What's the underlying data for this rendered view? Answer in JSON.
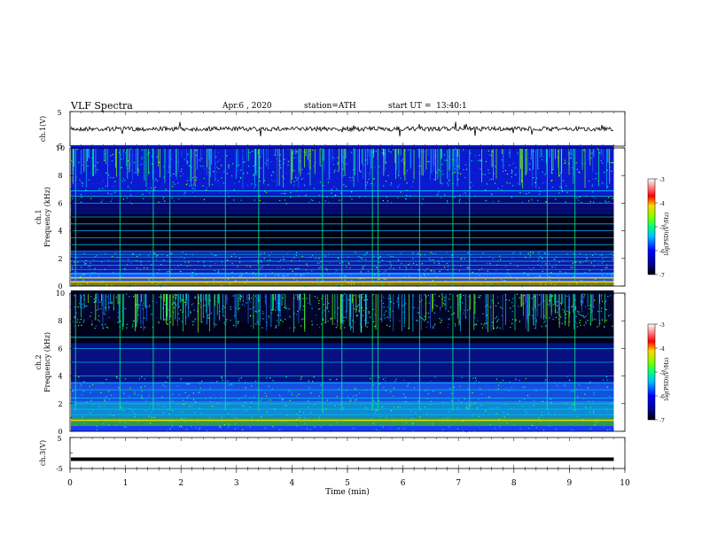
{
  "header": {
    "title": "VLF Spectra",
    "date": "Apr.6 , 2020",
    "station": "station=ATH",
    "start": "start UT =  13:40:1"
  },
  "chart_data": [
    {
      "type": "line",
      "panel": "ch1-waveform",
      "ylabel": "ch.1(V)",
      "ylim": [
        -5,
        5
      ],
      "yticks": [
        "5",
        "-5"
      ],
      "xlim": [
        0,
        10
      ],
      "series": [
        {
          "x_range": [
            0,
            9.8
          ],
          "approx_level": 0,
          "approx_noise": 0.6
        }
      ]
    },
    {
      "type": "heatmap",
      "panel": "ch1-spectrogram",
      "ylabel": "ch.1\nFrequency (kHz)",
      "ylim": [
        0,
        10
      ],
      "yticks": [
        "0",
        "2",
        "4",
        "6",
        "8",
        "10"
      ],
      "xlim": [
        0,
        10
      ],
      "x_data_end": 9.8,
      "colorbar": {
        "label": "log(PSD)(V²/Hz)",
        "ticks": [
          "-3",
          "-4",
          "-5",
          "-6",
          "-7"
        ],
        "range": [
          -7,
          -3
        ]
      },
      "bands_khz": [
        0.3,
        0.6,
        0.9,
        1.2,
        1.5,
        1.8,
        2.1,
        2.3,
        2.5,
        3.0,
        3.5,
        4.0,
        4.5,
        5.0,
        6.0,
        6.5,
        6.9
      ],
      "spikes_min": [
        0.1,
        0.9,
        1.5,
        1.8,
        2.8,
        3.4,
        4.55,
        4.9,
        5.45,
        5.55,
        6.3,
        6.9,
        7.2,
        8.6,
        9.1
      ]
    },
    {
      "type": "heatmap",
      "panel": "ch2-spectrogram",
      "ylabel": "ch.2\nFrequency (kHz)",
      "ylim": [
        0,
        10
      ],
      "yticks": [
        "0",
        "2",
        "4",
        "6",
        "8",
        "10"
      ],
      "xlim": [
        0,
        10
      ],
      "x_data_end": 9.8,
      "colorbar": {
        "label": "log(PSD)(V²/Hz)",
        "ticks": [
          "-3",
          "-4",
          "-5",
          "-6",
          "-7"
        ],
        "range": [
          -7,
          -3
        ]
      },
      "bands_khz": [
        0.8,
        1.2,
        1.6,
        2.0,
        2.4,
        3.0,
        3.5,
        4.0,
        5.0,
        6.0,
        6.8
      ],
      "spikes_min": [
        0.1,
        0.9,
        1.5,
        1.8,
        2.8,
        3.4,
        4.55,
        4.9,
        5.45,
        5.55,
        6.3,
        6.9,
        7.2,
        8.6,
        9.1
      ]
    },
    {
      "type": "line",
      "panel": "ch3-waveform",
      "ylabel": "ch.3(V)",
      "ylim": [
        -5,
        5
      ],
      "yticks": [
        "5",
        "-5"
      ],
      "xlim": [
        0,
        10
      ],
      "xlabel": "Time (min)",
      "xticks": [
        "0",
        "1",
        "2",
        "3",
        "4",
        "5",
        "6",
        "7",
        "8",
        "9",
        "10"
      ],
      "series": [
        {
          "x_range": [
            0,
            9.8
          ],
          "approx_level": -2
        }
      ]
    }
  ],
  "colors": {
    "psd_scale": [
      "#000000",
      "#00008b",
      "#0000ff",
      "#00bfff",
      "#00ff7f",
      "#7fff00",
      "#ffd700",
      "#ff0000",
      "#ffffff"
    ]
  }
}
